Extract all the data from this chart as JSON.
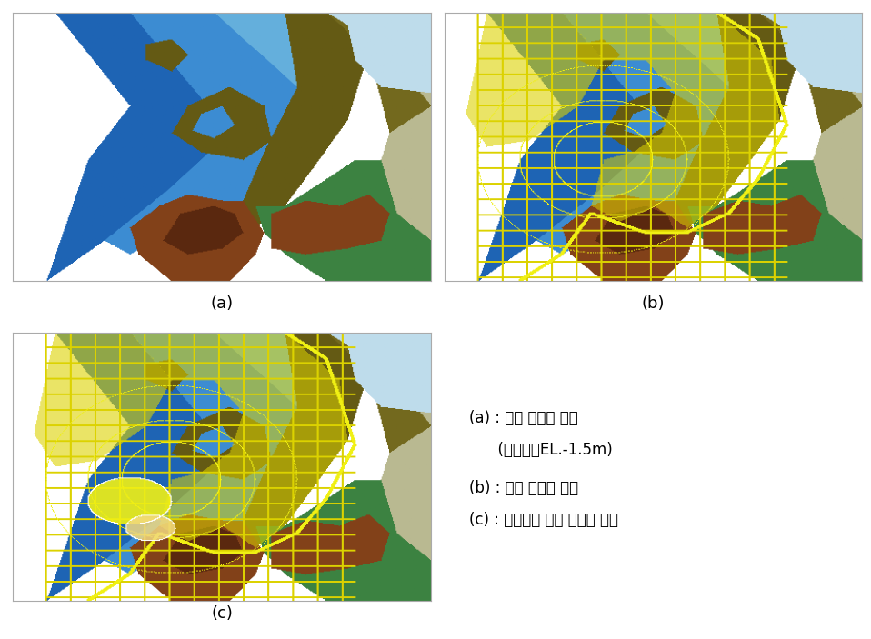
{
  "figure_width": 9.58,
  "figure_height": 7.03,
  "dpi": 100,
  "background_color": "#ffffff",
  "label_a": "(a)",
  "label_b": "(b)",
  "label_c": "(c)",
  "text_lines": [
    "(a) : 물에 잠기는 부분",
    "      (기준수심EL.-1.5m)",
    "(b) : 계획 도면과 중첩",
    "(c) : 생태용지 매립 대상지 중첩"
  ],
  "text_fontsize": 12,
  "label_fontsize": 13,
  "colors": {
    "white_bg": [
      255,
      255,
      255
    ],
    "deep_blue": [
      30,
      100,
      180
    ],
    "mid_blue": [
      60,
      140,
      210
    ],
    "light_blue": [
      100,
      175,
      220
    ],
    "pale_blue": [
      150,
      200,
      230
    ],
    "very_pale_blue": [
      190,
      220,
      235
    ],
    "olive_dark": [
      100,
      90,
      20
    ],
    "olive_mid": [
      115,
      105,
      30
    ],
    "olive_light": [
      130,
      120,
      40
    ],
    "sand_pale": [
      185,
      185,
      145
    ],
    "sand_light": [
      210,
      205,
      170
    ],
    "green_dark": [
      40,
      100,
      50
    ],
    "green_mid": [
      60,
      130,
      65
    ],
    "brown_dark": [
      90,
      40,
      15
    ],
    "brown_mid": [
      130,
      65,
      25
    ],
    "brown_light": [
      160,
      90,
      45
    ],
    "terrain_red": [
      160,
      80,
      40
    ],
    "white": [
      255,
      255,
      255
    ],
    "yellow": [
      220,
      210,
      0
    ],
    "bright_yellow": [
      240,
      240,
      20
    ],
    "pale_green_bg": [
      180,
      195,
      155
    ],
    "light_sage": [
      195,
      205,
      170
    ]
  }
}
